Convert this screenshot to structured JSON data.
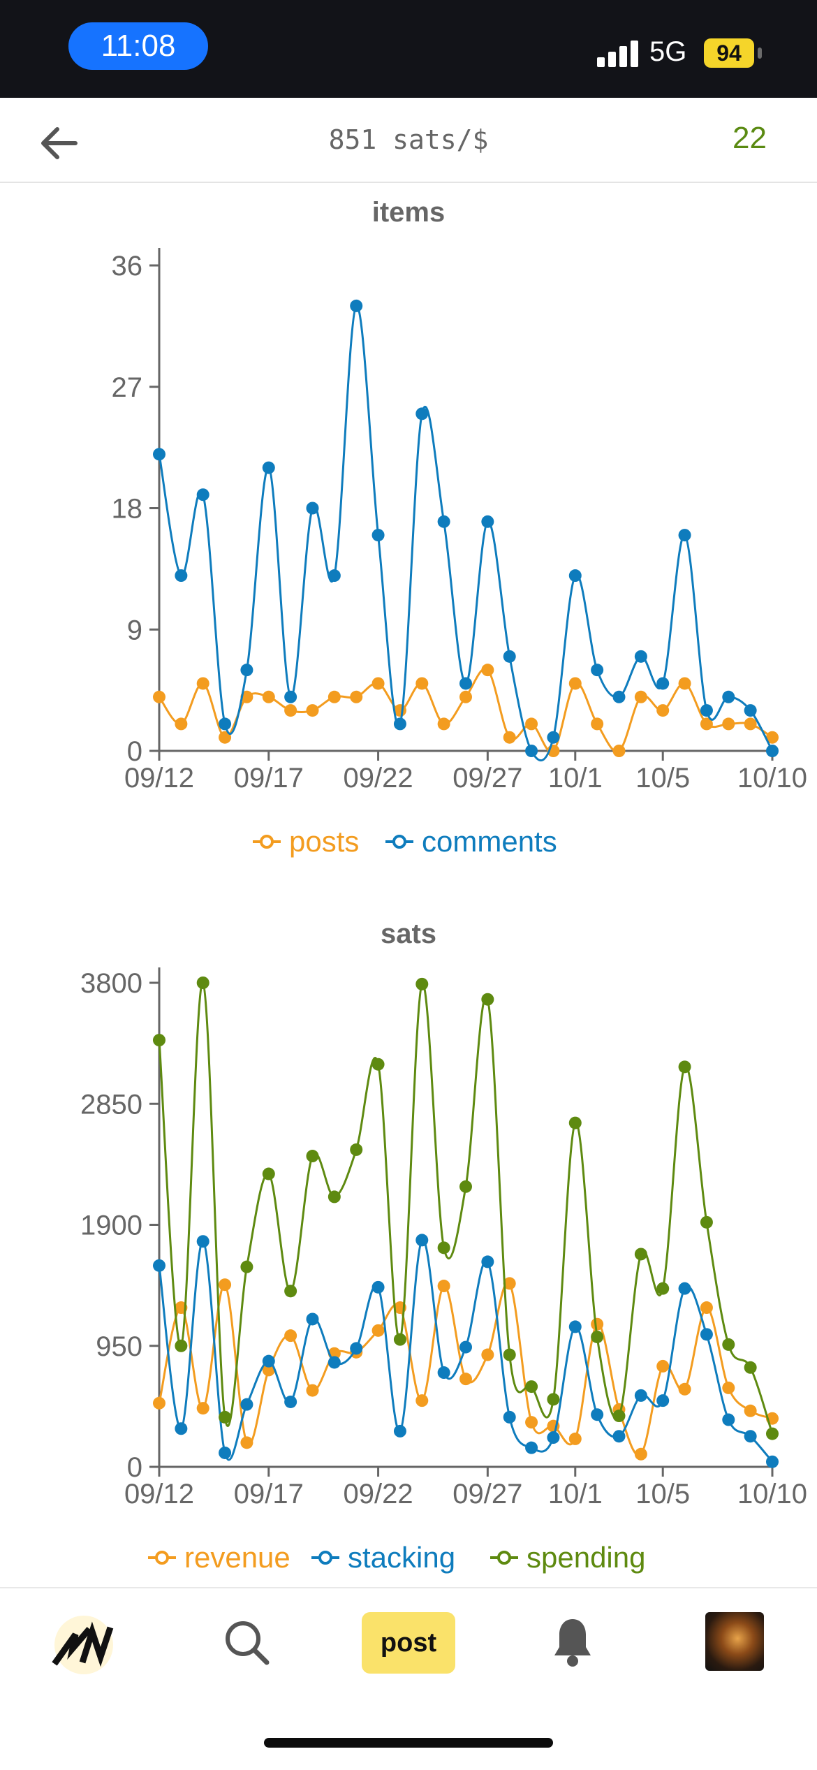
{
  "status_bar": {
    "time": "11:08",
    "network": "5G",
    "battery": "94"
  },
  "header": {
    "price": "851 sats/$",
    "block_height": "22"
  },
  "colors": {
    "posts": "#f39c1f",
    "comments": "#0e7cbd",
    "revenue": "#f39c1f",
    "stacking": "#0e7cbd",
    "spending": "#5e8a10",
    "axis": "#666666",
    "text": "#666666"
  },
  "chart_data": [
    {
      "type": "line",
      "title": "items",
      "categories": [
        "09/12",
        "09/13",
        "09/14",
        "09/15",
        "09/16",
        "09/17",
        "09/18",
        "09/19",
        "09/20",
        "09/21",
        "09/22",
        "09/23",
        "09/24",
        "09/25",
        "09/26",
        "09/27",
        "09/28",
        "09/29",
        "09/30",
        "10/1",
        "10/2",
        "10/3",
        "10/4",
        "10/5",
        "10/6",
        "10/7",
        "10/8",
        "10/9",
        "10/10"
      ],
      "tick_labels": [
        "09/12",
        "09/17",
        "09/22",
        "09/27",
        "10/1",
        "10/5",
        "10/10"
      ],
      "ylim": [
        0,
        36
      ],
      "yticks": [
        0,
        9,
        18,
        27,
        36
      ],
      "series": [
        {
          "name": "posts",
          "color_key": "posts",
          "values": [
            4,
            2,
            5,
            1,
            4,
            4,
            3,
            3,
            4,
            4,
            5,
            3,
            5,
            2,
            4,
            6,
            1,
            2,
            0,
            5,
            2,
            0,
            4,
            3,
            5,
            2,
            2,
            2,
            1
          ]
        },
        {
          "name": "comments",
          "color_key": "comments",
          "values": [
            22,
            13,
            19,
            2,
            6,
            21,
            4,
            18,
            13,
            33,
            16,
            2,
            25,
            17,
            5,
            17,
            7,
            0,
            1,
            13,
            6,
            4,
            7,
            5,
            16,
            3,
            4,
            3,
            0
          ]
        }
      ]
    },
    {
      "type": "line",
      "title": "sats",
      "categories": [
        "09/12",
        "09/13",
        "09/14",
        "09/15",
        "09/16",
        "09/17",
        "09/18",
        "09/19",
        "09/20",
        "09/21",
        "09/22",
        "09/23",
        "09/24",
        "09/25",
        "09/26",
        "09/27",
        "09/28",
        "09/29",
        "09/30",
        "10/1",
        "10/2",
        "10/3",
        "10/4",
        "10/5",
        "10/6",
        "10/7",
        "10/8",
        "10/9",
        "10/10"
      ],
      "tick_labels": [
        "09/12",
        "09/17",
        "09/22",
        "09/27",
        "10/1",
        "10/5",
        "10/10"
      ],
      "ylim": [
        0,
        3800
      ],
      "yticks": [
        0,
        950,
        1900,
        2850,
        3800
      ],
      "series": [
        {
          "name": "revenue",
          "color_key": "revenue",
          "values": [
            500,
            1250,
            460,
            1430,
            190,
            760,
            1030,
            600,
            890,
            900,
            1070,
            1250,
            520,
            1420,
            690,
            880,
            1440,
            350,
            320,
            220,
            1120,
            450,
            100,
            790,
            610,
            1250,
            620,
            440,
            380
          ]
        },
        {
          "name": "stacking",
          "color_key": "stacking",
          "values": [
            1580,
            300,
            1770,
            110,
            490,
            830,
            510,
            1160,
            820,
            930,
            1410,
            280,
            1780,
            740,
            940,
            1610,
            390,
            150,
            230,
            1100,
            410,
            240,
            560,
            520,
            1400,
            1040,
            370,
            240,
            40
          ]
        },
        {
          "name": "spending",
          "color_key": "spending",
          "values": [
            3350,
            950,
            3800,
            390,
            1570,
            2300,
            1380,
            2440,
            2120,
            2490,
            3160,
            1000,
            3790,
            1720,
            2200,
            3670,
            880,
            630,
            530,
            2700,
            1020,
            400,
            1670,
            1400,
            3140,
            1920,
            960,
            780,
            260
          ]
        }
      ]
    }
  ]
}
